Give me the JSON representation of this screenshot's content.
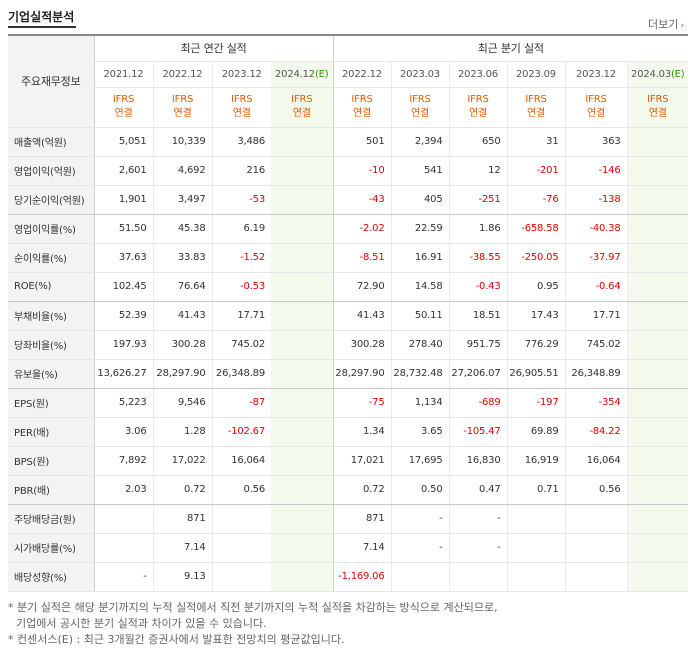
{
  "section": {
    "title": "기업실적분석",
    "more_label": "더보기"
  },
  "header": {
    "label_column": "주요재무정보",
    "annual_title": "최근 연간 실적",
    "quarterly_title": "최근 분기 실적",
    "annual_periods": [
      {
        "label": "2021.12",
        "est": ""
      },
      {
        "label": "2022.12",
        "est": ""
      },
      {
        "label": "2023.12",
        "est": ""
      },
      {
        "label": "2024.12",
        "est": "(E)"
      }
    ],
    "quarterly_periods": [
      {
        "label": "2022.12",
        "est": ""
      },
      {
        "label": "2023.03",
        "est": ""
      },
      {
        "label": "2023.06",
        "est": ""
      },
      {
        "label": "2023.09",
        "est": ""
      },
      {
        "label": "2023.12",
        "est": ""
      },
      {
        "label": "2024.03",
        "est": "(E)"
      }
    ],
    "basis_line1": "IFRS",
    "basis_line2": "연결"
  },
  "rows": [
    {
      "label": "매출액(억원)",
      "annual": [
        "5,051",
        "10,339",
        "3,486",
        ""
      ],
      "quarterly": [
        "501",
        "2,394",
        "650",
        "31",
        "363",
        ""
      ]
    },
    {
      "label": "영업이익(억원)",
      "annual": [
        "2,601",
        "4,692",
        "216",
        ""
      ],
      "quarterly": [
        "-10",
        "541",
        "12",
        "-201",
        "-146",
        ""
      ]
    },
    {
      "label": "당기순이익(억원)",
      "annual": [
        "1,901",
        "3,497",
        "-53",
        ""
      ],
      "quarterly": [
        "-43",
        "405",
        "-251",
        "-76",
        "-138",
        ""
      ]
    },
    {
      "label": "영업이익률(%)",
      "annual": [
        "51.50",
        "45.38",
        "6.19",
        ""
      ],
      "quarterly": [
        "-2.02",
        "22.59",
        "1.86",
        "-658.58",
        "-40.38",
        ""
      ]
    },
    {
      "label": "순이익률(%)",
      "annual": [
        "37.63",
        "33.83",
        "-1.52",
        ""
      ],
      "quarterly": [
        "-8.51",
        "16.91",
        "-38.55",
        "-250.05",
        "-37.97",
        ""
      ]
    },
    {
      "label": "ROE(%)",
      "annual": [
        "102.45",
        "76.64",
        "-0.53",
        ""
      ],
      "quarterly": [
        "72.90",
        "14.58",
        "-0.43",
        "0.95",
        "-0.64",
        ""
      ]
    },
    {
      "label": "부채비율(%)",
      "annual": [
        "52.39",
        "41.43",
        "17.71",
        ""
      ],
      "quarterly": [
        "41.43",
        "50.11",
        "18.51",
        "17.43",
        "17.71",
        ""
      ]
    },
    {
      "label": "당좌비율(%)",
      "annual": [
        "197.93",
        "300.28",
        "745.02",
        ""
      ],
      "quarterly": [
        "300.28",
        "278.40",
        "951.75",
        "776.29",
        "745.02",
        ""
      ]
    },
    {
      "label": "유보율(%)",
      "annual": [
        "13,626.27",
        "28,297.90",
        "26,348.89",
        ""
      ],
      "quarterly": [
        "28,297.90",
        "28,732.48",
        "27,206.07",
        "26,905.51",
        "26,348.89",
        ""
      ]
    },
    {
      "label": "EPS(원)",
      "annual": [
        "5,223",
        "9,546",
        "-87",
        ""
      ],
      "quarterly": [
        "-75",
        "1,134",
        "-689",
        "-197",
        "-354",
        ""
      ]
    },
    {
      "label": "PER(배)",
      "annual": [
        "3.06",
        "1.28",
        "-102.67",
        ""
      ],
      "quarterly": [
        "1.34",
        "3.65",
        "-105.47",
        "69.89",
        "-84.22",
        ""
      ]
    },
    {
      "label": "BPS(원)",
      "annual": [
        "7,892",
        "17,022",
        "16,064",
        ""
      ],
      "quarterly": [
        "17,021",
        "17,695",
        "16,830",
        "16,919",
        "16,064",
        ""
      ]
    },
    {
      "label": "PBR(배)",
      "annual": [
        "2.03",
        "0.72",
        "0.56",
        ""
      ],
      "quarterly": [
        "0.72",
        "0.50",
        "0.47",
        "0.71",
        "0.56",
        ""
      ]
    },
    {
      "label": "주당배당금(원)",
      "annual": [
        "",
        "871",
        "",
        ""
      ],
      "quarterly": [
        "871",
        "-",
        "-",
        "",
        "",
        ""
      ]
    },
    {
      "label": "시가배당률(%)",
      "annual": [
        "",
        "7.14",
        "",
        ""
      ],
      "quarterly": [
        "7.14",
        "-",
        "-",
        "",
        "",
        ""
      ]
    },
    {
      "label": "배당성향(%)",
      "annual": [
        "-",
        "9.13",
        "",
        ""
      ],
      "quarterly": [
        "-1,169.06",
        "",
        "",
        "",
        "",
        ""
      ]
    }
  ],
  "group_breaks_after": [
    2,
    5,
    8,
    12
  ],
  "notes": {
    "line1": "* 분기 실적은 해당 분기까지의 누적 실적에서 직전 분기까지의 누적 실적을 차감하는 방식으로 계산되므로,",
    "line2": "기업에서 공시한 분기 실적과 차이가 있을 수 있습니다.",
    "line3": "* 컨센서스(E) : 최근 3개월간 증권사에서 발표한 전망치의 평균값입니다."
  },
  "colors": {
    "negative": "#e60000",
    "basis": "#e25a00",
    "estimate_bg": "#f4f9ed"
  }
}
